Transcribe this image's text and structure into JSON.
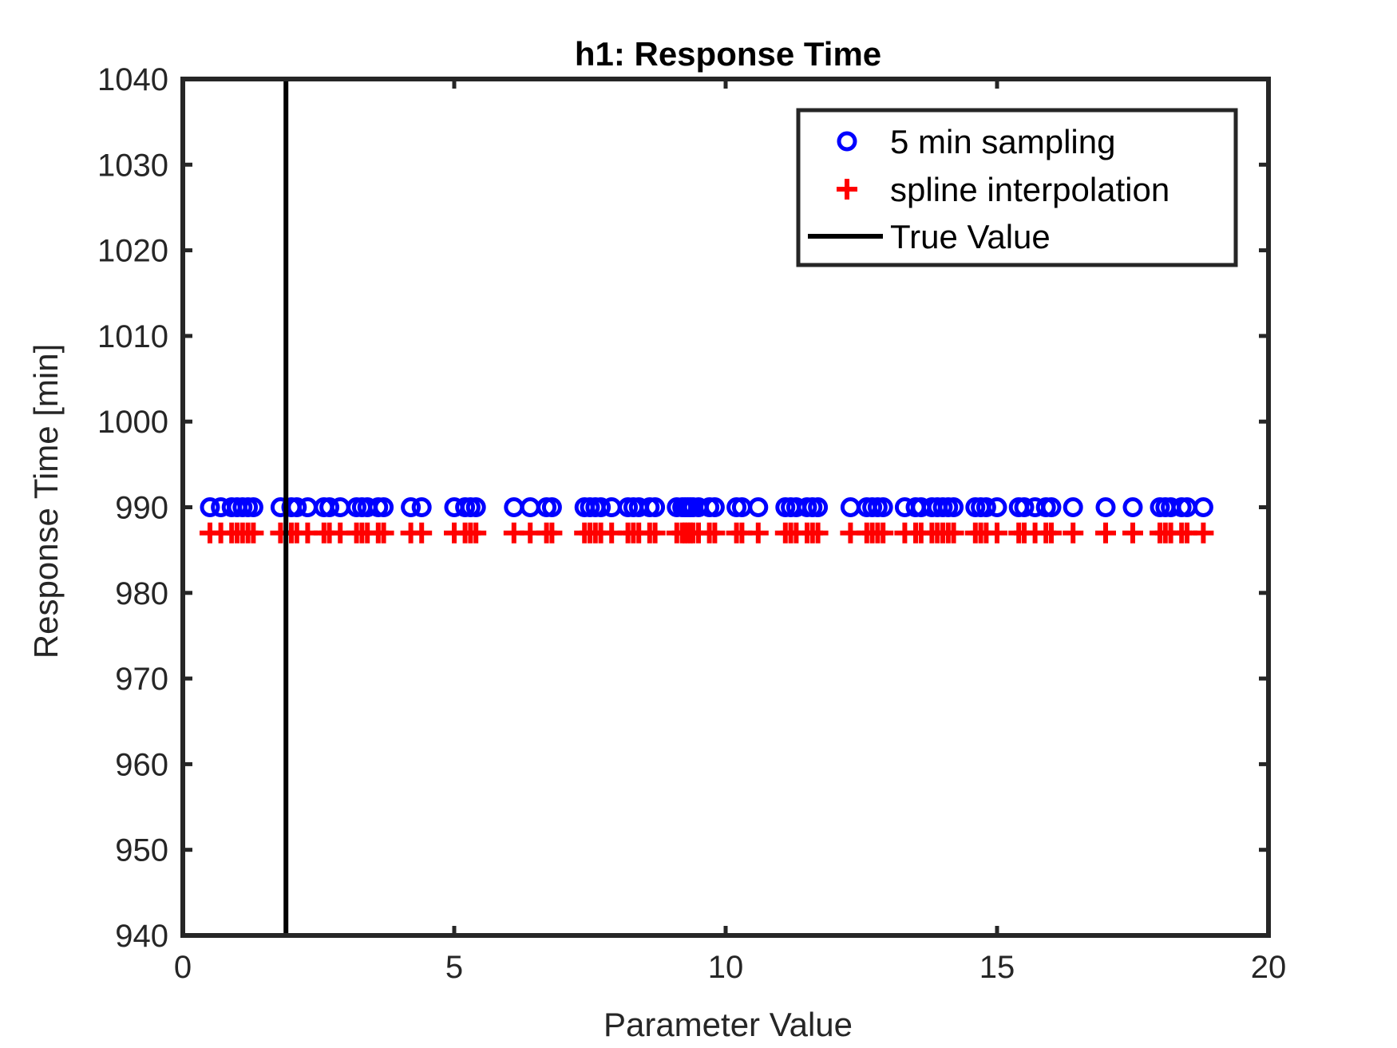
{
  "chart_data": {
    "type": "scatter",
    "title": "h1: Response Time",
    "xlabel": "Parameter Value",
    "ylabel": "Response Time [min]",
    "xlim": [
      0,
      20
    ],
    "ylim": [
      940,
      1040
    ],
    "xticks": [
      0,
      5,
      10,
      15,
      20
    ],
    "yticks": [
      940,
      950,
      960,
      970,
      980,
      990,
      1000,
      1010,
      1020,
      1030,
      1040
    ],
    "grid": false,
    "legend_position": "top-right",
    "series": [
      {
        "name": "5 min sampling",
        "marker": "circle",
        "color": "#0000ff",
        "y": 990,
        "x": [
          0.5,
          0.7,
          0.9,
          1.0,
          1.1,
          1.2,
          1.3,
          1.8,
          2.0,
          2.1,
          2.3,
          2.6,
          2.7,
          2.9,
          3.2,
          3.3,
          3.4,
          3.6,
          3.7,
          4.2,
          4.4,
          5.0,
          5.2,
          5.3,
          5.4,
          6.1,
          6.4,
          6.7,
          6.8,
          7.4,
          7.5,
          7.6,
          7.7,
          7.9,
          8.2,
          8.3,
          8.4,
          8.6,
          8.7,
          9.1,
          9.2,
          9.25,
          9.3,
          9.35,
          9.4,
          9.5,
          9.7,
          9.8,
          10.2,
          10.3,
          10.6,
          11.1,
          11.2,
          11.3,
          11.5,
          11.6,
          11.7,
          12.3,
          12.6,
          12.7,
          12.8,
          12.9,
          13.3,
          13.5,
          13.6,
          13.8,
          13.9,
          14.0,
          14.1,
          14.2,
          14.6,
          14.7,
          14.8,
          15.0,
          15.4,
          15.5,
          15.7,
          15.9,
          16.0,
          16.4,
          17.0,
          17.5,
          18.0,
          18.1,
          18.2,
          18.4,
          18.5,
          18.8
        ]
      },
      {
        "name": "spline interpolation",
        "marker": "plus",
        "color": "#ff0000",
        "y": 987,
        "x": [
          0.5,
          0.7,
          0.9,
          1.0,
          1.1,
          1.2,
          1.3,
          1.8,
          2.0,
          2.1,
          2.3,
          2.6,
          2.7,
          2.9,
          3.2,
          3.3,
          3.4,
          3.6,
          3.7,
          4.2,
          4.4,
          5.0,
          5.2,
          5.3,
          5.4,
          6.1,
          6.4,
          6.7,
          6.8,
          7.4,
          7.5,
          7.6,
          7.7,
          7.9,
          8.2,
          8.3,
          8.4,
          8.6,
          8.7,
          9.1,
          9.2,
          9.25,
          9.3,
          9.35,
          9.4,
          9.5,
          9.7,
          9.8,
          10.2,
          10.3,
          10.6,
          11.1,
          11.2,
          11.3,
          11.5,
          11.6,
          11.7,
          12.3,
          12.6,
          12.7,
          12.8,
          12.9,
          13.3,
          13.5,
          13.6,
          13.8,
          13.9,
          14.0,
          14.1,
          14.2,
          14.6,
          14.7,
          14.8,
          15.0,
          15.4,
          15.5,
          15.7,
          15.9,
          16.0,
          16.4,
          17.0,
          17.5,
          18.0,
          18.1,
          18.2,
          18.4,
          18.5,
          18.8
        ]
      }
    ],
    "reference_line": {
      "name": "True Value",
      "orientation": "vertical",
      "x": 1.9,
      "color": "#000000"
    }
  }
}
